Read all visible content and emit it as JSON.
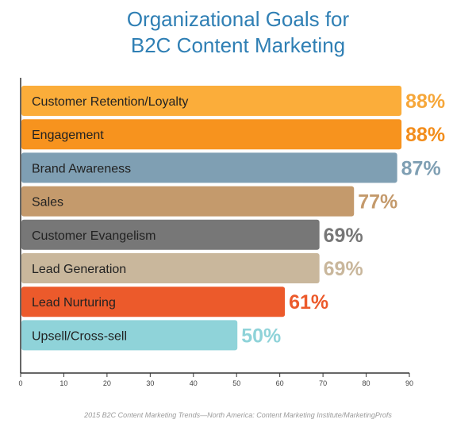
{
  "chart_data": {
    "type": "bar",
    "orientation": "horizontal",
    "title_lines": [
      "Organizational Goals for",
      "B2C Content Marketing"
    ],
    "categories": [
      "Customer Retention/Loyalty",
      "Engagement",
      "Brand Awareness",
      "Sales",
      "Customer Evangelism",
      "Lead Generation",
      "Lead Nurturing",
      "Upsell/Cross-sell"
    ],
    "values": [
      88,
      88,
      87,
      77,
      69,
      69,
      61,
      50
    ],
    "value_labels": [
      "88%",
      "88%",
      "87%",
      "77%",
      "69%",
      "69%",
      "61%",
      "50%"
    ],
    "bar_colors": [
      "#fbad3a",
      "#f7931e",
      "#7f9fb3",
      "#c49a6c",
      "#777777",
      "#c9b79c",
      "#ec5a2b",
      "#8fd3d9"
    ],
    "label_colors": [
      "#f6a73a",
      "#f28d1c",
      "#7f9fb3",
      "#c49a6c",
      "#777777",
      "#c9b79c",
      "#ec5a2b",
      "#8fd3d9"
    ],
    "xlim": [
      0,
      90
    ],
    "xticks": [
      "0",
      "10",
      "20",
      "30",
      "40",
      "50",
      "60",
      "70",
      "80",
      "90"
    ],
    "grid": false,
    "source": "2015 B2C Content Marketing Trends—North America: Content Marketing Institute/MarketingProfs"
  }
}
